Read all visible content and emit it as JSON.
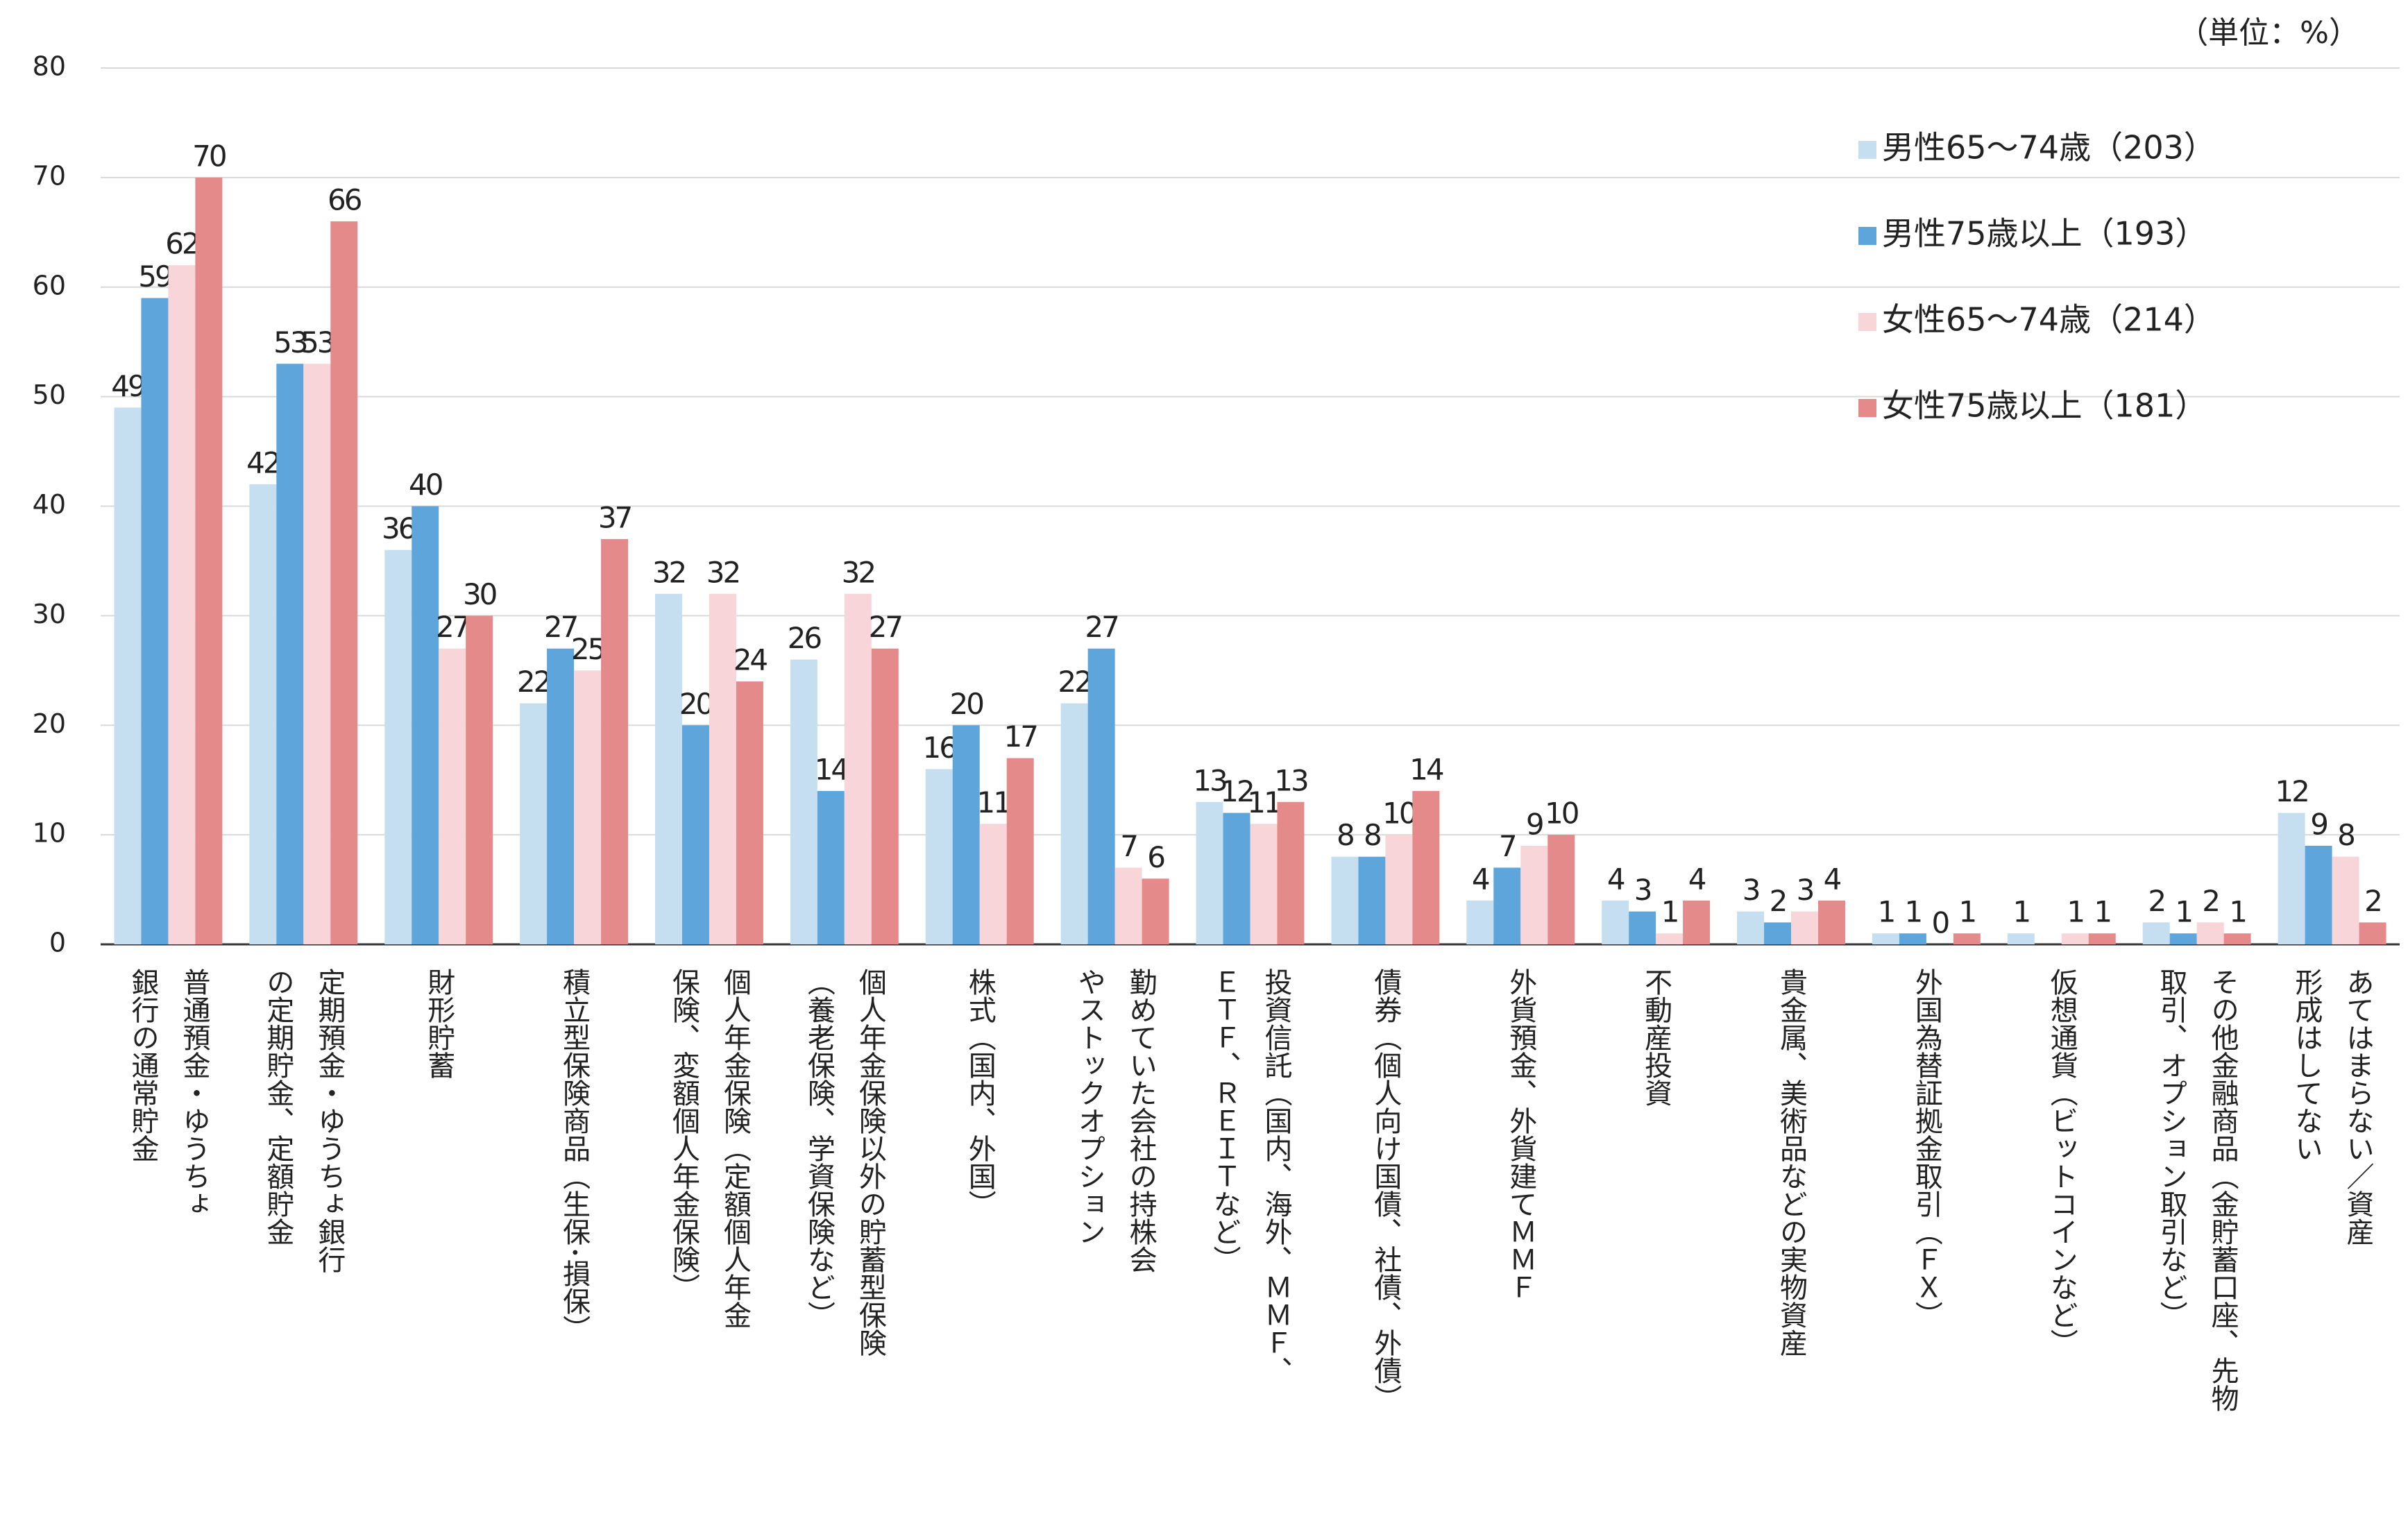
{
  "chart_data": {
    "type": "bar",
    "unit_note": "（単位：%）",
    "categories": [
      [
        "普通預金・ゆうちょ",
        "銀行の通常貯金"
      ],
      [
        "定期預金・ゆうちょ銀行",
        "の定期貯金、定額貯金"
      ],
      [
        "財形貯蓄"
      ],
      [
        "積立型保険商品（生保･損保）"
      ],
      [
        "個人年金保険（定額個人年金",
        "保険、変額個人年金保険）"
      ],
      [
        "個人年金保険以外の貯蓄型保険",
        "（養老保険、学資保険など）"
      ],
      [
        "株式（国内、外国）"
      ],
      [
        "勤めていた会社の持株会",
        "やストックオプション"
      ],
      [
        "投資信託（国内、海外、ＭＭＦ、",
        "ＥＴＦ、ＲＥＩＴなど）"
      ],
      [
        "債券（個人向け国債、社債、外債）"
      ],
      [
        "外貨預金、外貨建てＭＭＦ"
      ],
      [
        "不動産投資"
      ],
      [
        "貴金属、美術品などの実物資産"
      ],
      [
        "外国為替証拠金取引（ＦＸ）"
      ],
      [
        "仮想通貨（ビットコインなど）"
      ],
      [
        "その他金融商品（金貯蓄口座、先物",
        "取引、オプション取引など）"
      ],
      [
        "あてはまらない／資産",
        "形成はしてない"
      ]
    ],
    "series": [
      {
        "name": "男性65～74歳（203）",
        "color": "#c5dff0",
        "values": [
          49,
          42,
          36,
          22,
          32,
          26,
          16,
          22,
          13,
          8,
          4,
          4,
          3,
          1,
          1,
          2,
          12
        ]
      },
      {
        "name": "男性75歳以上（193）",
        "color": "#5da5da",
        "values": [
          59,
          53,
          40,
          27,
          20,
          14,
          20,
          27,
          12,
          8,
          7,
          3,
          2,
          1,
          null,
          1,
          9
        ]
      },
      {
        "name": "女性65～74歳（214）",
        "color": "#f8d5d8",
        "values": [
          62,
          53,
          27,
          25,
          32,
          32,
          11,
          7,
          11,
          10,
          9,
          1,
          3,
          0,
          1,
          2,
          8
        ]
      },
      {
        "name": "女性75歳以上（181）",
        "color": "#e58a8a",
        "values": [
          70,
          66,
          30,
          37,
          24,
          27,
          17,
          6,
          13,
          14,
          10,
          4,
          4,
          1,
          1,
          1,
          2
        ]
      }
    ],
    "ylim": [
      0,
      80
    ],
    "yticks": [
      0,
      10,
      20,
      30,
      40,
      50,
      60,
      70,
      80
    ],
    "grid": true
  }
}
